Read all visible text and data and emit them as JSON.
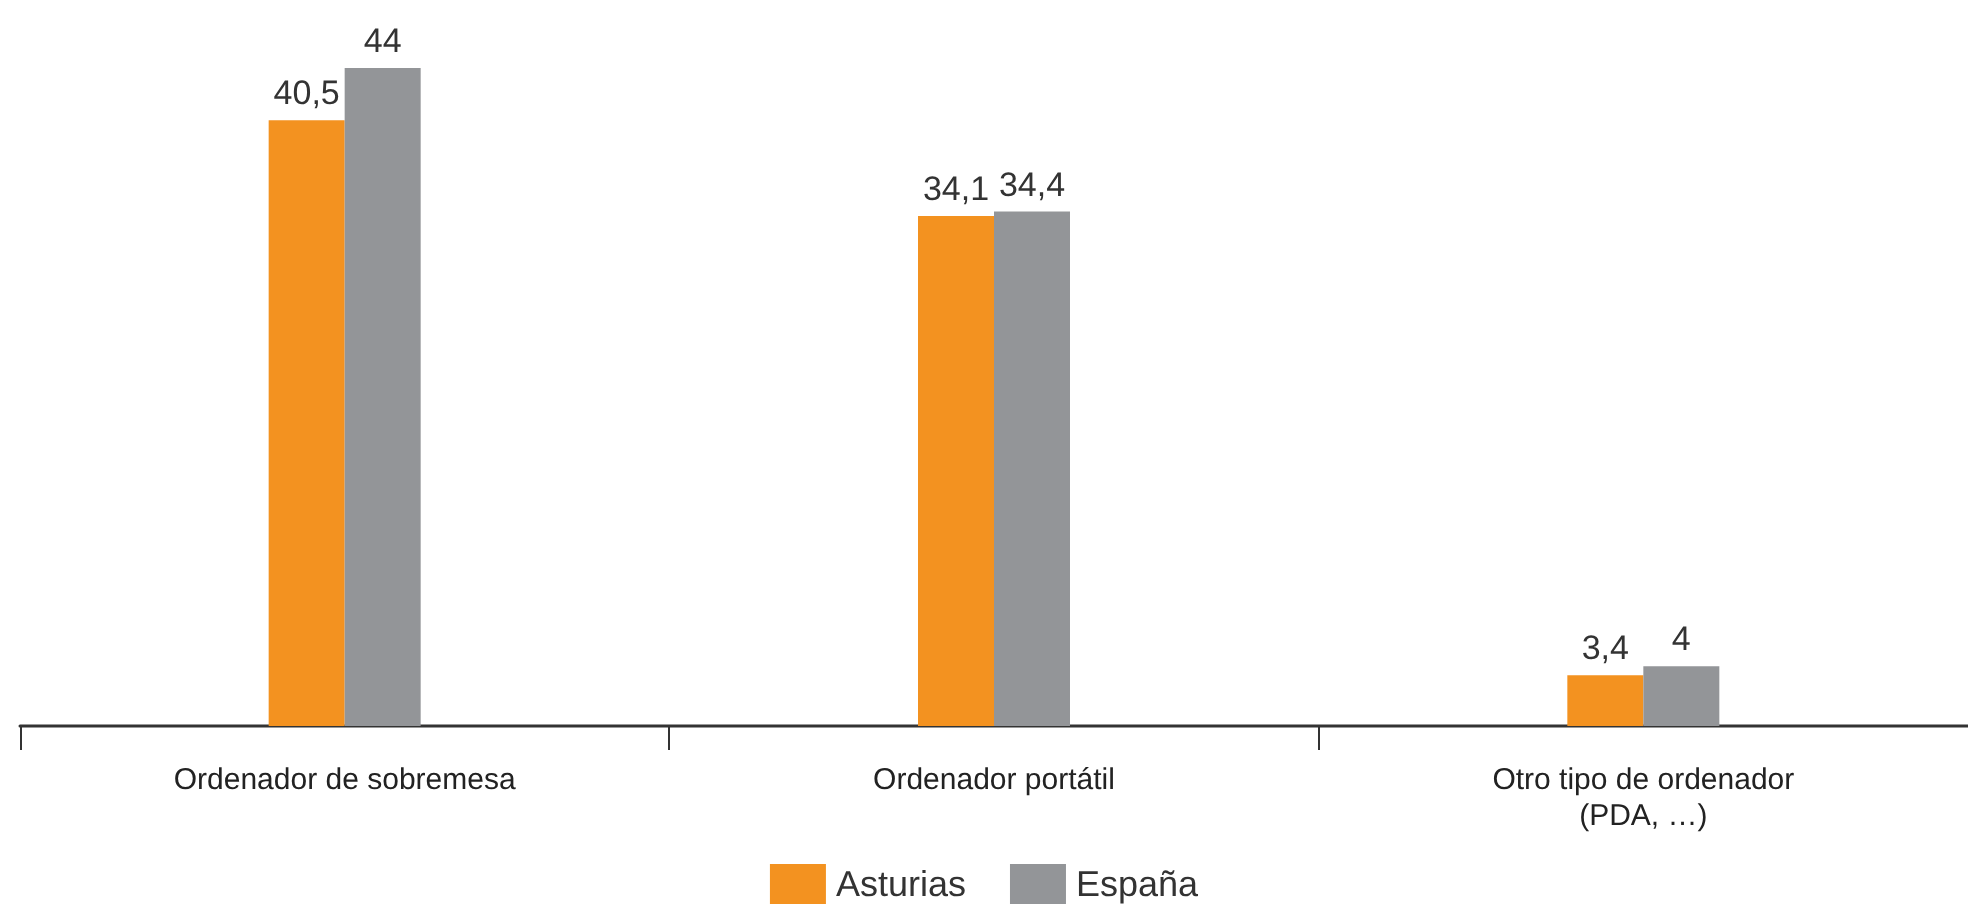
{
  "chart_data": {
    "type": "bar",
    "categories": [
      "Ordenador de sobremesa",
      "Ordenador portátil",
      "Otro tipo de ordenador\n(PDA, …)"
    ],
    "series": [
      {
        "name": "Asturias",
        "color": "#f39220",
        "values": [
          40.5,
          34.1,
          3.4
        ],
        "value_labels": [
          "40,5",
          "34,1",
          "3,4"
        ]
      },
      {
        "name": "España",
        "color": "#939598",
        "values": [
          44,
          34.4,
          4
        ],
        "value_labels": [
          "44",
          "34,4",
          "4"
        ]
      }
    ],
    "legend": "bottom"
  }
}
